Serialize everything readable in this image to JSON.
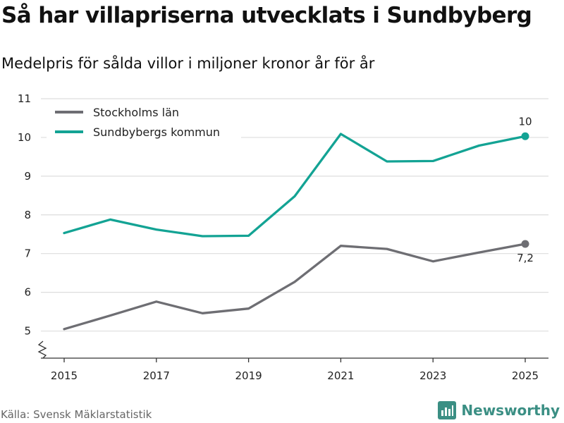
{
  "title": "Så har villapriserna utvecklats i Sundbyberg",
  "subtitle": "Medelpris för sålda villor i miljoner kronor år för år",
  "source": "Källa: Svensk Mäklarstatistik",
  "brand": "Newsworthy",
  "colors": {
    "stockholm": "#6e6e73",
    "sundbyberg": "#13a394",
    "grid": "#dddddd",
    "axis": "#333333",
    "brand": "#3b8f84"
  },
  "chart_data": {
    "type": "line",
    "title": "Så har villapriserna utvecklats i Sundbyberg",
    "xlabel": "",
    "ylabel": "",
    "x": [
      2015,
      2016,
      2017,
      2018,
      2019,
      2020,
      2021,
      2022,
      2023,
      2024,
      2025
    ],
    "xticks": [
      2015,
      2017,
      2019,
      2021,
      2023,
      2025
    ],
    "ylim": [
      4.3,
      11
    ],
    "yticks": [
      5,
      6,
      7,
      8,
      9,
      10,
      11
    ],
    "grid": true,
    "legend_position": "top-left",
    "series": [
      {
        "name": "Stockholms län",
        "color": "#6e6e73",
        "values": [
          5.05,
          5.4,
          5.76,
          5.46,
          5.58,
          6.27,
          7.2,
          7.12,
          6.8,
          7.03,
          7.25
        ],
        "end_label": "7,2"
      },
      {
        "name": "Sundbybergs kommun",
        "color": "#13a394",
        "values": [
          7.53,
          7.88,
          7.62,
          7.45,
          7.46,
          8.48,
          10.09,
          9.38,
          9.39,
          9.79,
          10.03
        ],
        "end_label": "10"
      }
    ]
  }
}
